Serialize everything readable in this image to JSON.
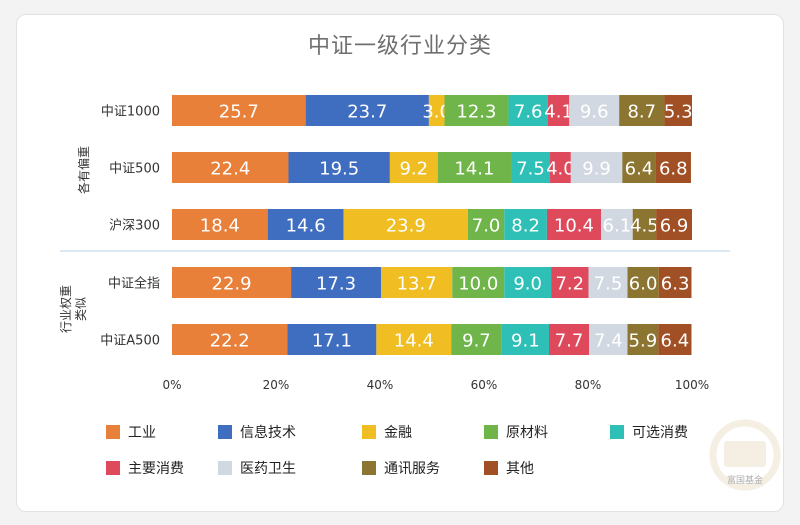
{
  "chart_data": {
    "type": "bar",
    "orientation": "horizontal",
    "stacked": true,
    "title": "中证一级行业分类",
    "categories": [
      "中证1000",
      "中证500",
      "沪深300",
      "中证全指",
      "中证A500"
    ],
    "groups": [
      {
        "label": "各有偏重",
        "categories": [
          "中证1000",
          "中证500",
          "沪深300"
        ]
      },
      {
        "label": "行业权重类似",
        "categories": [
          "中证全指",
          "中证A500"
        ]
      }
    ],
    "series": [
      {
        "name": "工业",
        "color": "#E8803A",
        "values": [
          25.7,
          22.4,
          18.4,
          22.9,
          22.2
        ]
      },
      {
        "name": "信息技术",
        "color": "#3F6EC1",
        "values": [
          23.7,
          19.5,
          14.6,
          17.3,
          17.1
        ]
      },
      {
        "name": "金融",
        "color": "#F0BE22",
        "values": [
          3.0,
          9.2,
          23.9,
          13.7,
          14.4
        ]
      },
      {
        "name": "原材料",
        "color": "#6FB54A",
        "values": [
          12.3,
          14.1,
          7.0,
          10.0,
          9.7
        ]
      },
      {
        "name": "可选消费",
        "color": "#2EC0B6",
        "values": [
          7.6,
          7.5,
          8.2,
          9.0,
          9.1
        ]
      },
      {
        "name": "主要消费",
        "color": "#DE4A5C",
        "values": [
          4.1,
          4.0,
          10.4,
          7.2,
          7.7
        ]
      },
      {
        "name": "医药卫生",
        "color": "#D2D8E2",
        "values": [
          9.6,
          9.9,
          6.1,
          7.5,
          7.4
        ]
      },
      {
        "name": "通讯服务",
        "color": "#8C7530",
        "values": [
          8.7,
          6.4,
          4.5,
          6.0,
          5.9
        ]
      },
      {
        "name": "其他",
        "color": "#A14F24",
        "values": [
          5.3,
          6.8,
          6.9,
          6.3,
          6.4
        ]
      }
    ],
    "x_ticks": [
      "0%",
      "20%",
      "40%",
      "60%",
      "80%",
      "100%"
    ],
    "xlim": [
      0,
      100
    ],
    "legend_position": "bottom",
    "watermark": "富国基金"
  }
}
